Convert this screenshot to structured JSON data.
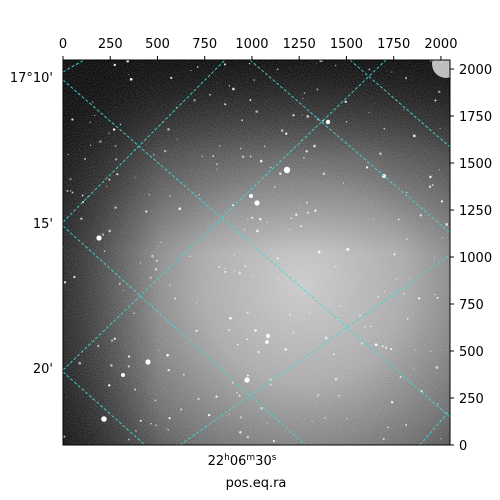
{
  "image": {
    "description_type": "astronomical sky image",
    "colormap": "grayscale",
    "grid_color": "#40d8d8"
  },
  "axes": {
    "xlabel": "pos.eq.ra",
    "pixel_x_ticks": [
      "0",
      "250",
      "500",
      "750",
      "1000",
      "1250",
      "1500",
      "1750",
      "2000"
    ],
    "pixel_y_ticks": [
      "0",
      "250",
      "500",
      "750",
      "1000",
      "1250",
      "1500",
      "1750",
      "2000"
    ],
    "pixel_range": [
      0,
      2048
    ],
    "dec_labels": [
      {
        "deg": "17°10'",
        "text": "17°10'"
      },
      {
        "deg": "15'",
        "text": "15'"
      },
      {
        "deg": "20'",
        "text": "20'"
      }
    ],
    "ra_label": {
      "h": "22",
      "m": "06",
      "s": "30"
    }
  }
}
